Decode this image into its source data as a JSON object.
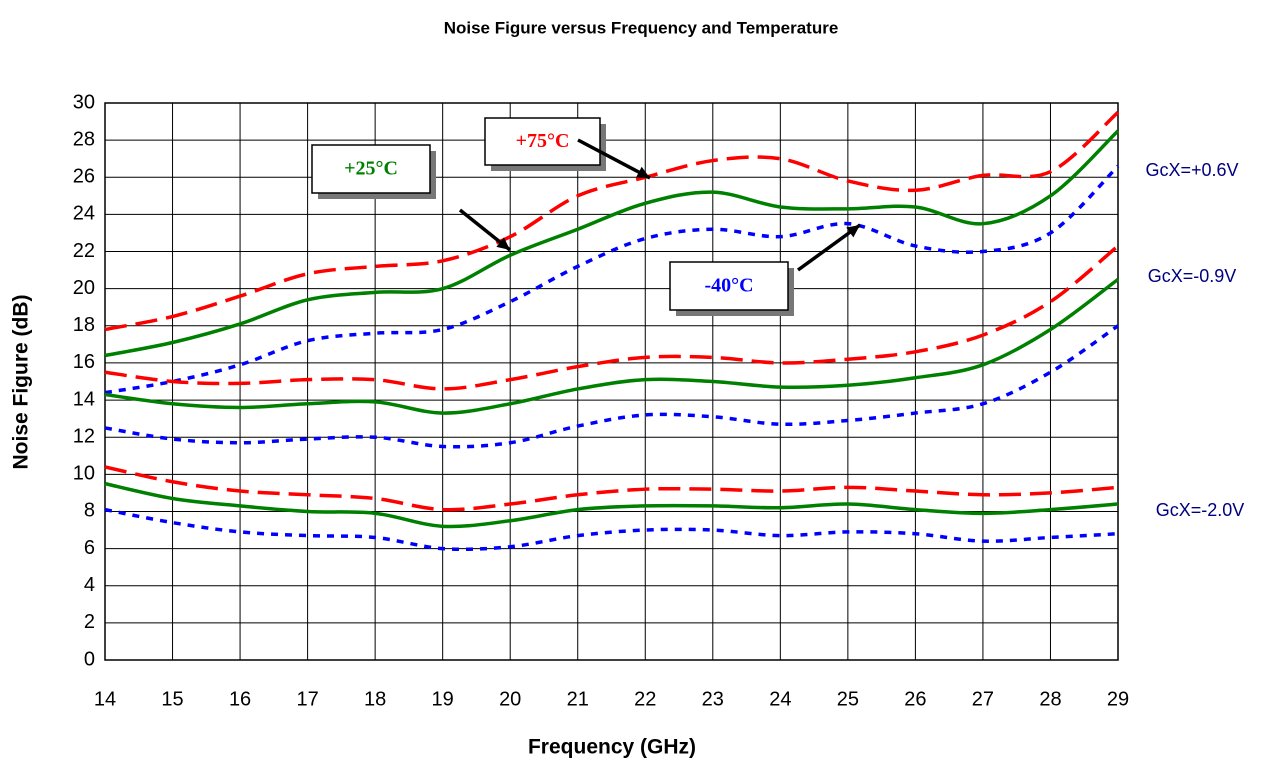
{
  "chart_data": {
    "type": "line",
    "title": "Noise Figure versus Frequency and Temperature",
    "x_label": "Frequency (GHz)",
    "y_label": "Noise Figure (dB)",
    "x": [
      14,
      15,
      16,
      17,
      18,
      19,
      20,
      21,
      22,
      23,
      24,
      25,
      26,
      27,
      28,
      29
    ],
    "xlim": [
      14,
      29
    ],
    "xticks": [
      14,
      15,
      16,
      17,
      18,
      19,
      20,
      21,
      22,
      23,
      24,
      25,
      26,
      27,
      28,
      29
    ],
    "ylim": [
      0,
      30
    ],
    "yticks": [
      0,
      2,
      4,
      6,
      8,
      10,
      12,
      14,
      16,
      18,
      20,
      22,
      24,
      26,
      28,
      30
    ],
    "grid": true,
    "series": [
      {
        "color": "#ff0000",
        "style": "dashed",
        "values": [
          17.8,
          18.5,
          19.6,
          20.8,
          21.2,
          21.5,
          22.8,
          25.0,
          26.0,
          26.9,
          27.0,
          25.8,
          25.3,
          26.1,
          26.3,
          29.5
        ]
      },
      {
        "color": "#008000",
        "style": "solid",
        "values": [
          16.4,
          17.1,
          18.1,
          19.4,
          19.8,
          20.0,
          21.8,
          23.2,
          24.6,
          25.2,
          24.4,
          24.3,
          24.4,
          23.5,
          25.0,
          28.5
        ]
      },
      {
        "color": "#0000ff",
        "style": "dotted",
        "values": [
          14.4,
          15.0,
          15.9,
          17.2,
          17.6,
          17.8,
          19.3,
          21.2,
          22.7,
          23.2,
          22.8,
          23.5,
          22.3,
          22.0,
          23.0,
          26.6
        ]
      },
      {
        "color": "#ff0000",
        "style": "dashed",
        "values": [
          15.5,
          15.0,
          14.9,
          15.1,
          15.1,
          14.6,
          15.1,
          15.8,
          16.3,
          16.3,
          16.0,
          16.2,
          16.6,
          17.5,
          19.3,
          22.3
        ]
      },
      {
        "color": "#008000",
        "style": "solid",
        "values": [
          14.3,
          13.8,
          13.6,
          13.8,
          13.9,
          13.3,
          13.8,
          14.6,
          15.1,
          15.0,
          14.7,
          14.8,
          15.2,
          15.9,
          17.8,
          20.5
        ]
      },
      {
        "color": "#0000ff",
        "style": "dotted",
        "values": [
          12.5,
          11.9,
          11.7,
          11.9,
          12.0,
          11.5,
          11.7,
          12.6,
          13.2,
          13.1,
          12.7,
          12.9,
          13.3,
          13.8,
          15.5,
          18.0
        ]
      },
      {
        "color": "#ff0000",
        "style": "dashed",
        "values": [
          10.4,
          9.6,
          9.1,
          8.9,
          8.7,
          8.1,
          8.4,
          8.9,
          9.2,
          9.2,
          9.1,
          9.3,
          9.1,
          8.9,
          9.0,
          9.3
        ]
      },
      {
        "color": "#008000",
        "style": "solid",
        "values": [
          9.5,
          8.7,
          8.3,
          8.0,
          7.9,
          7.2,
          7.5,
          8.1,
          8.3,
          8.3,
          8.2,
          8.4,
          8.1,
          7.9,
          8.1,
          8.4
        ]
      },
      {
        "color": "#0000ff",
        "style": "dotted",
        "values": [
          8.1,
          7.4,
          6.9,
          6.7,
          6.6,
          6.0,
          6.1,
          6.7,
          7.0,
          7.0,
          6.7,
          6.9,
          6.8,
          6.4,
          6.6,
          6.8
        ]
      }
    ],
    "temperature_labels": [
      {
        "text": "+25°C",
        "color": "#008000"
      },
      {
        "text": "+75°C",
        "color": "#ff0000"
      },
      {
        "text": "-40°C",
        "color": "#0000ff"
      }
    ],
    "curve_labels": [
      {
        "text": "GcX=+0.6V",
        "color": "#000080"
      },
      {
        "text": "GcX=-0.9V",
        "color": "#000080"
      },
      {
        "text": "GcX=-2.0V",
        "color": "#000080"
      }
    ]
  }
}
